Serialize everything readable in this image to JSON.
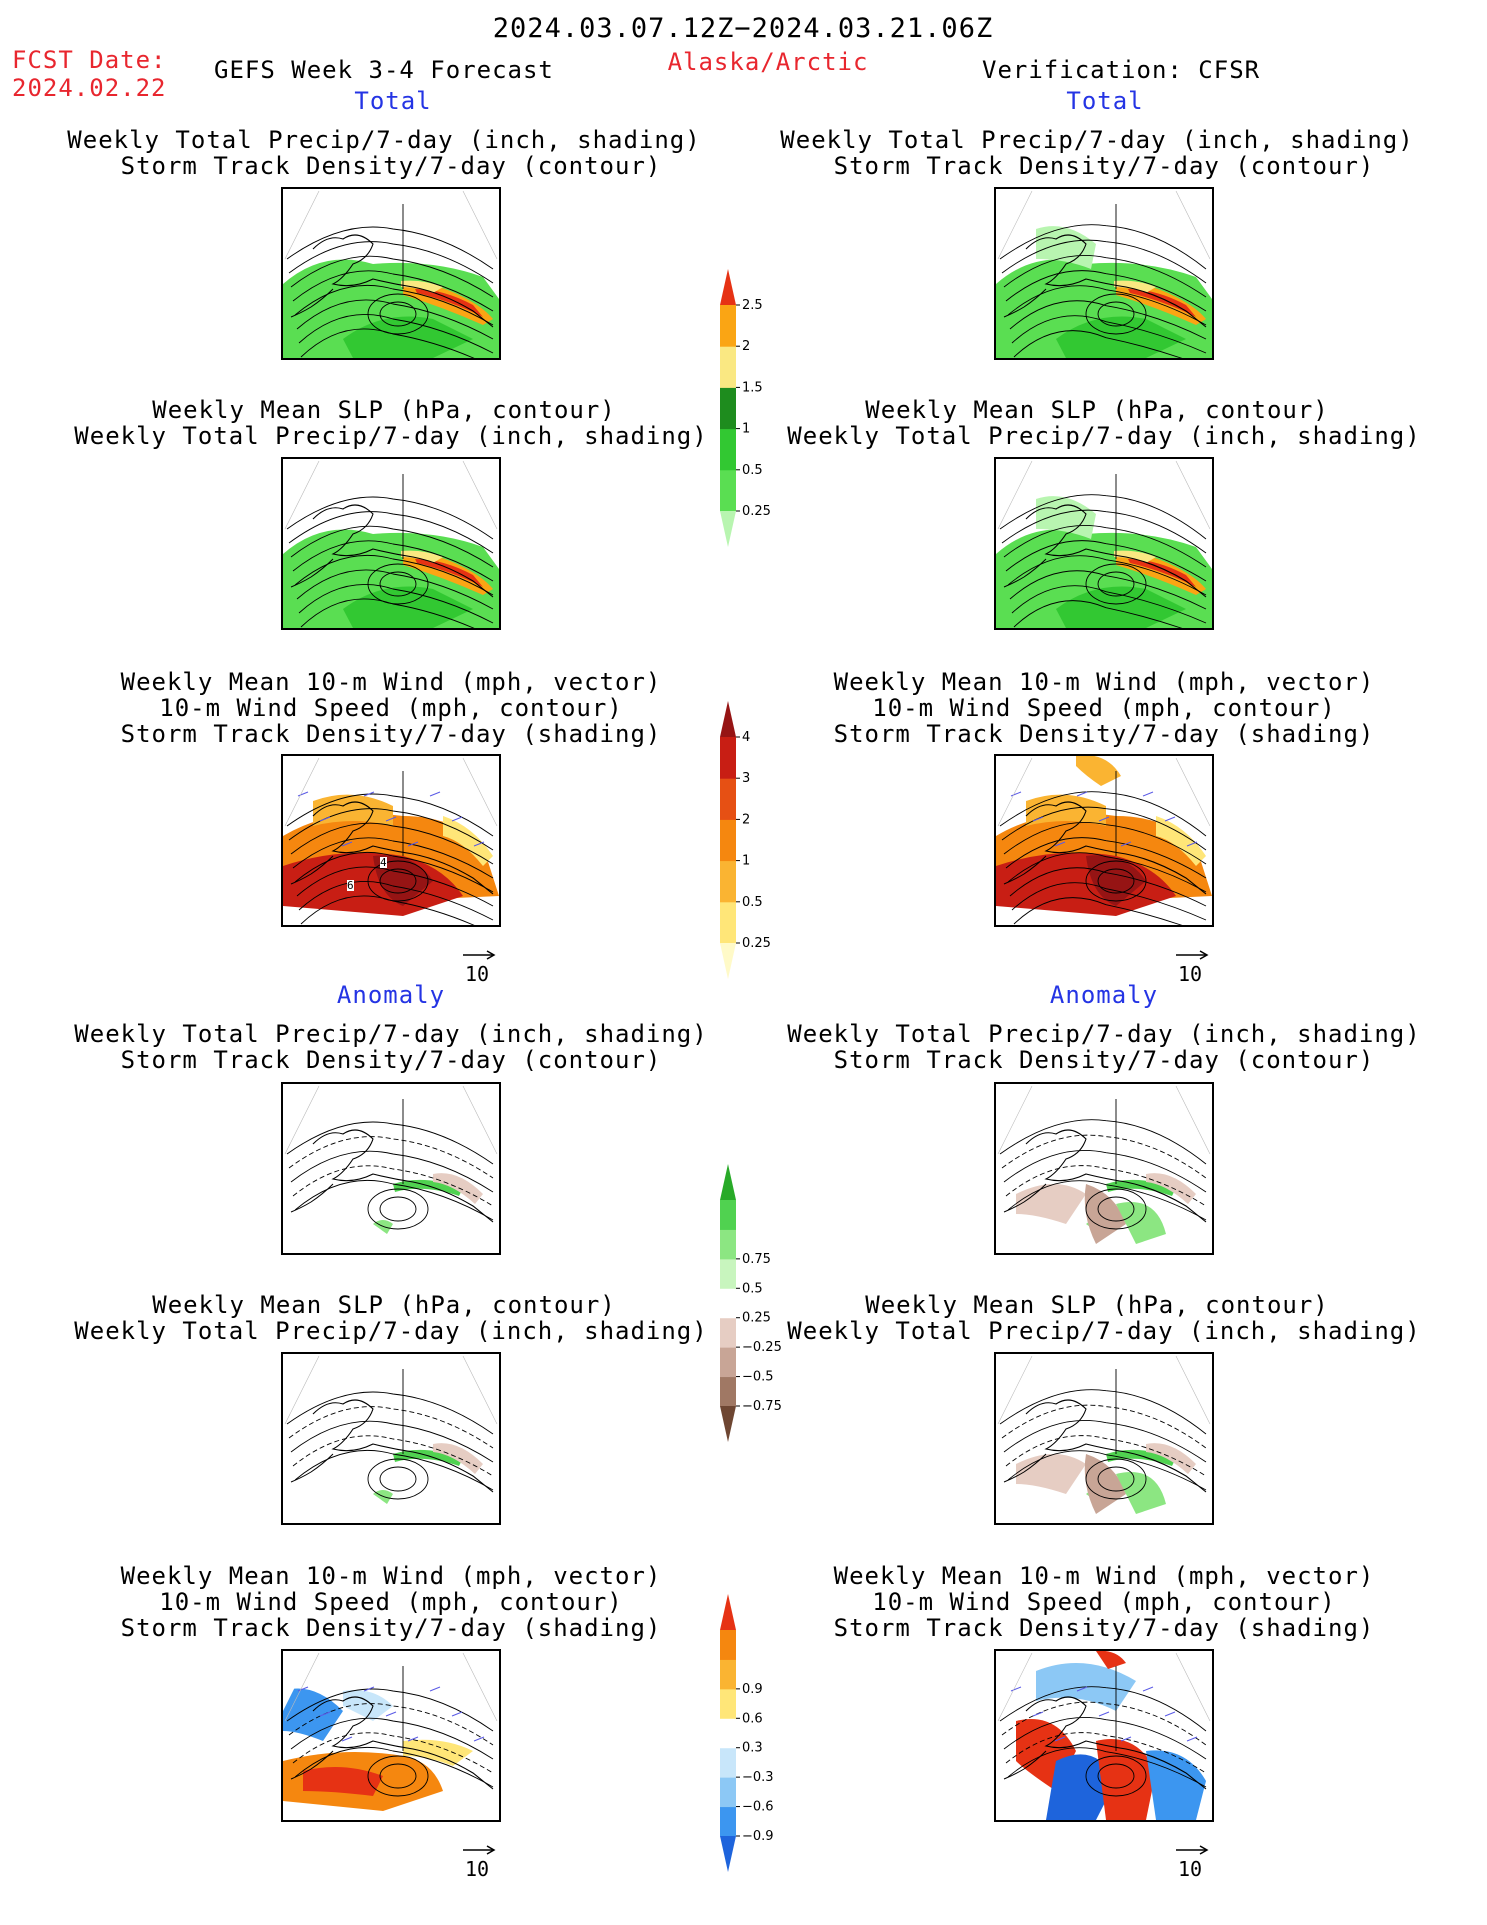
{
  "header": {
    "period": "2024.03.07.12Z−2024.03.21.06Z",
    "fcst_label": "FCST Date:",
    "fcst_date": "2024.02.22",
    "model": "GEFS Week 3-4 Forecast",
    "region": "Alaska/Arctic",
    "verification": "Verification: CFSR"
  },
  "sections": {
    "total": "Total",
    "anomaly": "Anomaly"
  },
  "titles": {
    "precip_track": [
      "Weekly Total Precip/7-day (inch, shading)",
      "Storm Track Density/7-day (contour)"
    ],
    "slp_precip": [
      "Weekly Mean SLP (hPa, contour)",
      "Weekly Total Precip/7-day (inch, shading)"
    ],
    "wind": [
      "Weekly Mean 10-m Wind (mph, vector)",
      "10-m Wind Speed (mph, contour)",
      "Storm Track Density/7-day (shading)"
    ]
  },
  "vector_ref": "10",
  "contour_labels": {
    "a": "4",
    "b": "6"
  },
  "chart_data": [
    {
      "type": "heatmap",
      "name": "precip_total_colorbar",
      "levels": [
        0.25,
        0.5,
        1,
        1.5,
        2,
        2.5
      ],
      "labels": [
        "0.25",
        "0.5",
        "1",
        "1.5",
        "2",
        "2.5"
      ],
      "colors": [
        "#b8f5b0",
        "#5ade52",
        "#32c832",
        "#1e8c1e",
        "#fae882",
        "#faa514",
        "#e63214"
      ]
    },
    {
      "type": "heatmap",
      "name": "storm_track_total_colorbar",
      "levels": [
        0.25,
        0.5,
        1,
        2,
        3,
        4
      ],
      "labels": [
        "0.25",
        "0.5",
        "1",
        "2",
        "3",
        "4"
      ],
      "colors": [
        "#fffac8",
        "#ffe678",
        "#fab432",
        "#f5870f",
        "#e65014",
        "#c81e14",
        "#961414"
      ]
    },
    {
      "type": "heatmap",
      "name": "precip_anomaly_colorbar",
      "levels": [
        -0.75,
        -0.5,
        -0.25,
        0.25,
        0.5,
        0.75
      ],
      "labels": [
        "−0.75",
        "−0.5",
        "−0.25",
        "0.25",
        "0.5",
        "0.75"
      ],
      "colors": [
        "#6e4632",
        "#a07864",
        "#c8a596",
        "#e6cdc3",
        "#ffffff",
        "#c8f5be",
        "#8ce682",
        "#50d250",
        "#28aa28"
      ]
    },
    {
      "type": "heatmap",
      "name": "storm_track_anomaly_colorbar",
      "levels": [
        -0.9,
        -0.6,
        -0.3,
        0.3,
        0.6,
        0.9
      ],
      "labels": [
        "−0.9",
        "−0.6",
        "−0.3",
        "0.3",
        "0.6",
        "0.9"
      ],
      "colors": [
        "#1e64dc",
        "#3c96f0",
        "#8cc8f5",
        "#c8e6fa",
        "#ffffff",
        "#ffe678",
        "#fab432",
        "#f5870f",
        "#e63214"
      ]
    }
  ]
}
